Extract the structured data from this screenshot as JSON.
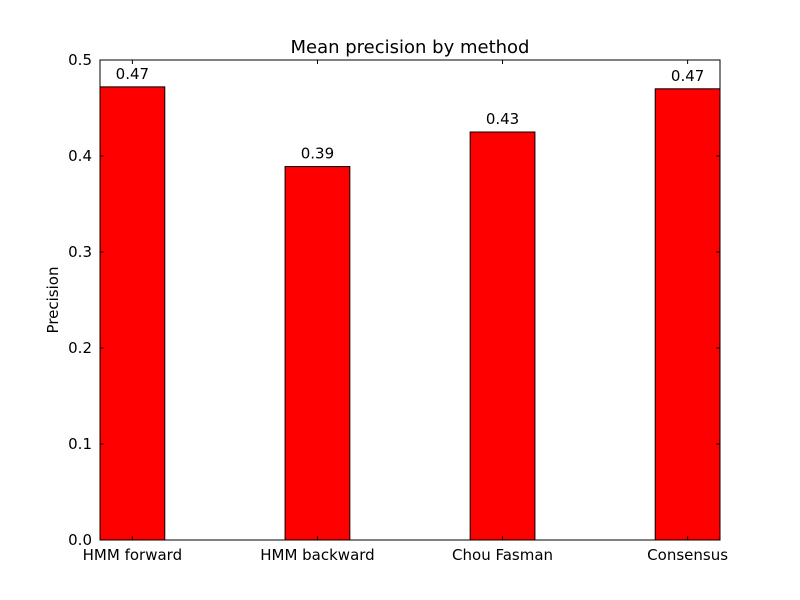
{
  "chart_data": {
    "type": "bar",
    "title": "Mean precision by method",
    "xlabel": "",
    "ylabel": "Precision",
    "categories": [
      "HMM forward",
      "HMM backward",
      "Chou Fasman",
      "Consensus"
    ],
    "values": [
      0.472,
      0.389,
      0.425,
      0.47
    ],
    "data_labels": [
      "0.47",
      "0.39",
      "0.43",
      "0.47"
    ],
    "ylim": [
      0,
      0.5
    ],
    "yticks": [
      "0.0",
      "0.1",
      "0.2",
      "0.3",
      "0.4",
      "0.5"
    ],
    "bar_color": "#ff0000",
    "edge_color": "#000000",
    "grid": false,
    "legend": false
  }
}
